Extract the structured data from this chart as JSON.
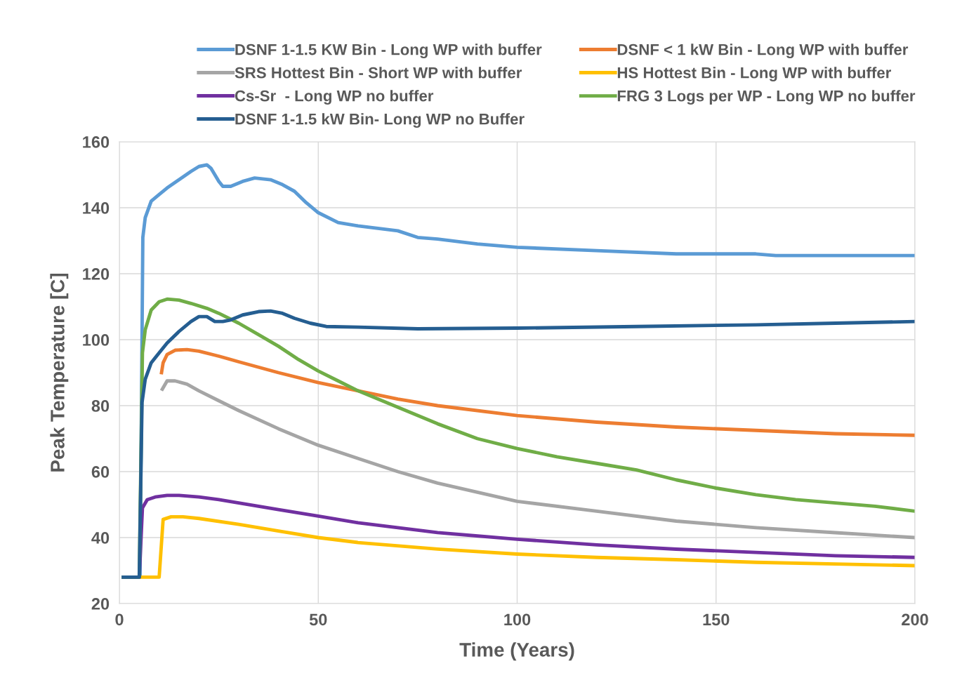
{
  "chart_data": {
    "type": "line",
    "xlabel": "Time (Years)",
    "ylabel": "Peak Temperature [C]",
    "xlim": [
      0,
      200
    ],
    "ylim": [
      20,
      160
    ],
    "xticks": [
      0,
      50,
      100,
      150,
      200
    ],
    "yticks": [
      20,
      40,
      60,
      80,
      100,
      120,
      140,
      160
    ],
    "grid": true,
    "legend": "top",
    "marker": "none",
    "line_style": "solid",
    "series": [
      {
        "name": "DSNF 1-1.5 KW Bin - Long WP with buffer",
        "color": "#5b9bd5",
        "x": [
          1,
          5.2,
          5.9,
          6.5,
          8,
          10,
          12,
          15,
          18,
          20,
          22,
          23,
          25,
          26,
          28,
          31,
          34,
          38,
          41,
          44,
          47,
          50,
          55,
          60,
          70,
          75,
          80,
          90,
          100,
          120,
          140,
          160,
          165,
          200
        ],
        "values": [
          28,
          28,
          131,
          137,
          142,
          144,
          146,
          148.5,
          151,
          152.5,
          153,
          152,
          148,
          146.5,
          146.5,
          148,
          149,
          148.5,
          147,
          145,
          141.5,
          138.5,
          135.5,
          134.5,
          133,
          131,
          130.5,
          129,
          128,
          127,
          126,
          126,
          125.5,
          125.5
        ]
      },
      {
        "name": "DSNF < 1 kW Bin - Long WP with buffer",
        "color": "#ed7d31",
        "x": [
          10.6,
          11,
          12,
          14,
          17,
          20,
          25,
          30,
          40,
          50,
          60,
          70,
          80,
          100,
          120,
          140,
          160,
          180,
          200
        ],
        "values": [
          90,
          93,
          95.5,
          96.8,
          97,
          96.5,
          95,
          93.3,
          90,
          87,
          84.5,
          82,
          80,
          77,
          75,
          73.5,
          72.5,
          71.5,
          71
        ]
      },
      {
        "name": "SRS Hottest Bin - Short WP with buffer",
        "color": "#a5a5a5",
        "x": [
          10.8,
          12,
          14,
          17,
          20,
          25,
          30,
          40,
          50,
          60,
          70,
          80,
          100,
          120,
          140,
          160,
          180,
          200
        ],
        "values": [
          85,
          87.5,
          87.5,
          86.5,
          84.5,
          81.5,
          78.5,
          73,
          68,
          64,
          60,
          56.5,
          51,
          48,
          45,
          43,
          41.5,
          40
        ]
      },
      {
        "name": "HS Hottest Bin - Long WP with buffer",
        "color": "#ffc000",
        "x": [
          5,
          10,
          11,
          13,
          16,
          20,
          30,
          40,
          50,
          60,
          80,
          100,
          120,
          140,
          160,
          180,
          200
        ],
        "values": [
          28,
          28,
          45.5,
          46.3,
          46.3,
          45.8,
          44,
          42,
          40,
          38.5,
          36.5,
          35,
          34,
          33.3,
          32.5,
          32,
          31.5
        ]
      },
      {
        "name": "Cs-Sr  - Long WP no buffer",
        "color": "#7030a0",
        "x": [
          1,
          5,
          5.8,
          7,
          9,
          12,
          15,
          20,
          25,
          30,
          40,
          50,
          60,
          70,
          80,
          100,
          120,
          140,
          160,
          180,
          200
        ],
        "values": [
          28,
          28,
          49,
          51.5,
          52.3,
          52.8,
          52.8,
          52.3,
          51.5,
          50.5,
          48.5,
          46.5,
          44.5,
          43,
          41.5,
          39.5,
          37.8,
          36.5,
          35.5,
          34.5,
          34
        ]
      },
      {
        "name": "FRG 3 Logs per WP - Long WP no buffer",
        "color": "#70ad47",
        "x": [
          1,
          5,
          5.8,
          6.5,
          8,
          10,
          12,
          15,
          18,
          22,
          25,
          30,
          35,
          40,
          45,
          50,
          55,
          60,
          70,
          80,
          90,
          100,
          110,
          120,
          130,
          140,
          150,
          160,
          170,
          180,
          190,
          200
        ],
        "values": [
          28,
          28,
          96,
          103,
          109,
          111.5,
          112.3,
          112,
          111,
          109.5,
          108,
          105,
          101.5,
          98,
          94,
          90.5,
          87.5,
          84.5,
          79.5,
          74.5,
          70,
          67,
          64.5,
          62.5,
          60.5,
          57.5,
          55,
          53,
          51.5,
          50.5,
          49.5,
          48
        ]
      },
      {
        "name": "DSNF 1-1.5 kW Bin- Long WP no Buffer",
        "color": "#255e91",
        "x": [
          1,
          5,
          5.7,
          6.5,
          8,
          10,
          12,
          15,
          18,
          20,
          22,
          24,
          26,
          28,
          31,
          35,
          38,
          41,
          44,
          48,
          52,
          60,
          75,
          100,
          130,
          160,
          180,
          200
        ],
        "values": [
          28,
          28,
          81,
          88,
          93,
          96,
          99,
          102.5,
          105.5,
          107,
          107,
          105.5,
          105.5,
          106,
          107.5,
          108.5,
          108.7,
          108,
          106.5,
          105,
          104,
          103.8,
          103.3,
          103.5,
          104,
          104.5,
          105,
          105.5
        ]
      }
    ]
  }
}
